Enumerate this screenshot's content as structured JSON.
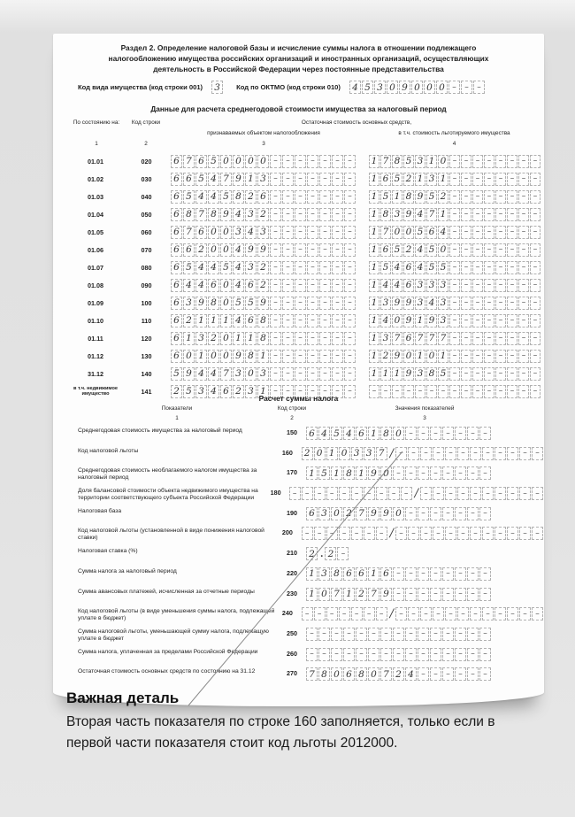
{
  "page": {
    "section_title_lines": [
      "Раздел 2. Определение налоговой базы и исчисление суммы налога в отношении подлежащего",
      "налогообложению имущества российских организаций и иностранных организаций, осуществляющих",
      "деятельность в Российской Федерации через постоянные представительства"
    ],
    "property_type_label": "Код вида имущества (код строки 001)",
    "property_type_value": "3",
    "oktmo_label": "Код по ОКТМО (код строки 010)",
    "oktmo_value": "45309000---"
  },
  "asset_table": {
    "title": "Данные для расчета среднегодовой стоимости имущества за налоговый период",
    "col_headers": {
      "date": "По состоянию на:",
      "code": "Код строки",
      "main": "Остаточная стоимость основных средств,",
      "sub_taxable": "признаваемых объектом налогообложения",
      "sub_exempt": "в т.ч. стоимость льготируемого имущества",
      "num1": "1",
      "num2": "2",
      "num3": "3",
      "num4": "4"
    },
    "rows": [
      {
        "date": "01.01",
        "code": "020",
        "taxable": "67650000-------",
        "exempt": "1785310--------"
      },
      {
        "date": "01.02",
        "code": "030",
        "taxable": "66547913-------",
        "exempt": "1652131--------"
      },
      {
        "date": "01.03",
        "code": "040",
        "taxable": "65445826-------",
        "exempt": "1518952--------"
      },
      {
        "date": "01.04",
        "code": "050",
        "taxable": "68789432-------",
        "exempt": "1839471--------"
      },
      {
        "date": "01.05",
        "code": "060",
        "taxable": "67600343-------",
        "exempt": "1700564--------"
      },
      {
        "date": "01.06",
        "code": "070",
        "taxable": "66200499-------",
        "exempt": "1652450--------"
      },
      {
        "date": "01.07",
        "code": "080",
        "taxable": "65445432-------",
        "exempt": "1546455--------"
      },
      {
        "date": "01.08",
        "code": "090",
        "taxable": "64460462-------",
        "exempt": "1446333--------"
      },
      {
        "date": "01.09",
        "code": "100",
        "taxable": "63980559-------",
        "exempt": "1399343--------"
      },
      {
        "date": "01.10",
        "code": "110",
        "taxable": "62111468-------",
        "exempt": "1409193--------"
      },
      {
        "date": "01.11",
        "code": "120",
        "taxable": "61320118-------",
        "exempt": "1376777--------"
      },
      {
        "date": "01.12",
        "code": "130",
        "taxable": "60100981-------",
        "exempt": "1290101--------"
      },
      {
        "date": "31.12",
        "code": "140",
        "taxable": "59447303-------",
        "exempt": "1119385--------"
      },
      {
        "date": "в т.ч. недвижимое имущество",
        "code": "141",
        "taxable": "25346231-------",
        "exempt": "---------------"
      }
    ]
  },
  "tax_calc": {
    "title": "Расчет суммы налога",
    "col_headers": {
      "indicators": "Показатели",
      "code": "Код строки",
      "values": "Значения показателей",
      "num1": "1",
      "num2": "2",
      "num3": "3"
    },
    "rows": [
      {
        "label": "Среднегодовая стоимость имущества за налоговый период",
        "code": "150",
        "parts": [
          "64546180-------"
        ]
      },
      {
        "label": "Код налоговой льготы",
        "code": "160",
        "sep": "/",
        "parts": [
          "2010337",
          "------------"
        ]
      },
      {
        "label": "Среднегодовая стоимость необлагаемого налогом имущества за налоговый период",
        "code": "170",
        "parts": [
          "1518190--------"
        ]
      },
      {
        "label": "Доля балансовой стоимости объекта недвижимого имущества на территории соответствующего субъекта Российской Федерации",
        "code": "180",
        "sep": "/",
        "parts": [
          "----------",
          "----------"
        ]
      },
      {
        "label": "Налоговая база",
        "code": "190",
        "parts": [
          "63027990-------"
        ]
      },
      {
        "label": "Код налоговой льготы (установленной в виде понижения налоговой ставки)",
        "code": "200",
        "sep": "/",
        "parts": [
          "-------",
          "------------"
        ]
      },
      {
        "label": "Налоговая ставка (%)",
        "code": "210",
        "sep": ".",
        "parts": [
          "2",
          "2-"
        ]
      },
      {
        "label": "Сумма налога за налоговый период",
        "code": "220",
        "parts": [
          "1386616--------"
        ]
      },
      {
        "label": "Сумма авансовых платежей, исчисленная за отчетные периоды",
        "code": "230",
        "parts": [
          "1071279--------"
        ]
      },
      {
        "label": "Код налоговой льготы (в виде уменьшения суммы налога, подлежащей уплате в бюджет)",
        "code": "240",
        "sep": "/",
        "parts": [
          "-------",
          "------------"
        ]
      },
      {
        "label": "Сумма налоговой льготы, уменьшающей сумму налога, подлежащую уплате в бюджет",
        "code": "250",
        "parts": [
          "---------------"
        ]
      },
      {
        "label": "Сумма налога, уплаченная за пределами Российской Федерации",
        "code": "260",
        "parts": [
          "---------------"
        ]
      },
      {
        "label": "Остаточная стоимость основных средств по состоянию на 31.12",
        "code": "270",
        "parts": [
          "780680724------"
        ]
      }
    ]
  },
  "note": {
    "heading": "Важная деталь",
    "body": "Вторая часть показателя по строке 160 заполняется, только если в первой части показателя стоит код льготы 2012000.",
    "line_color": "#8a8a8a"
  }
}
